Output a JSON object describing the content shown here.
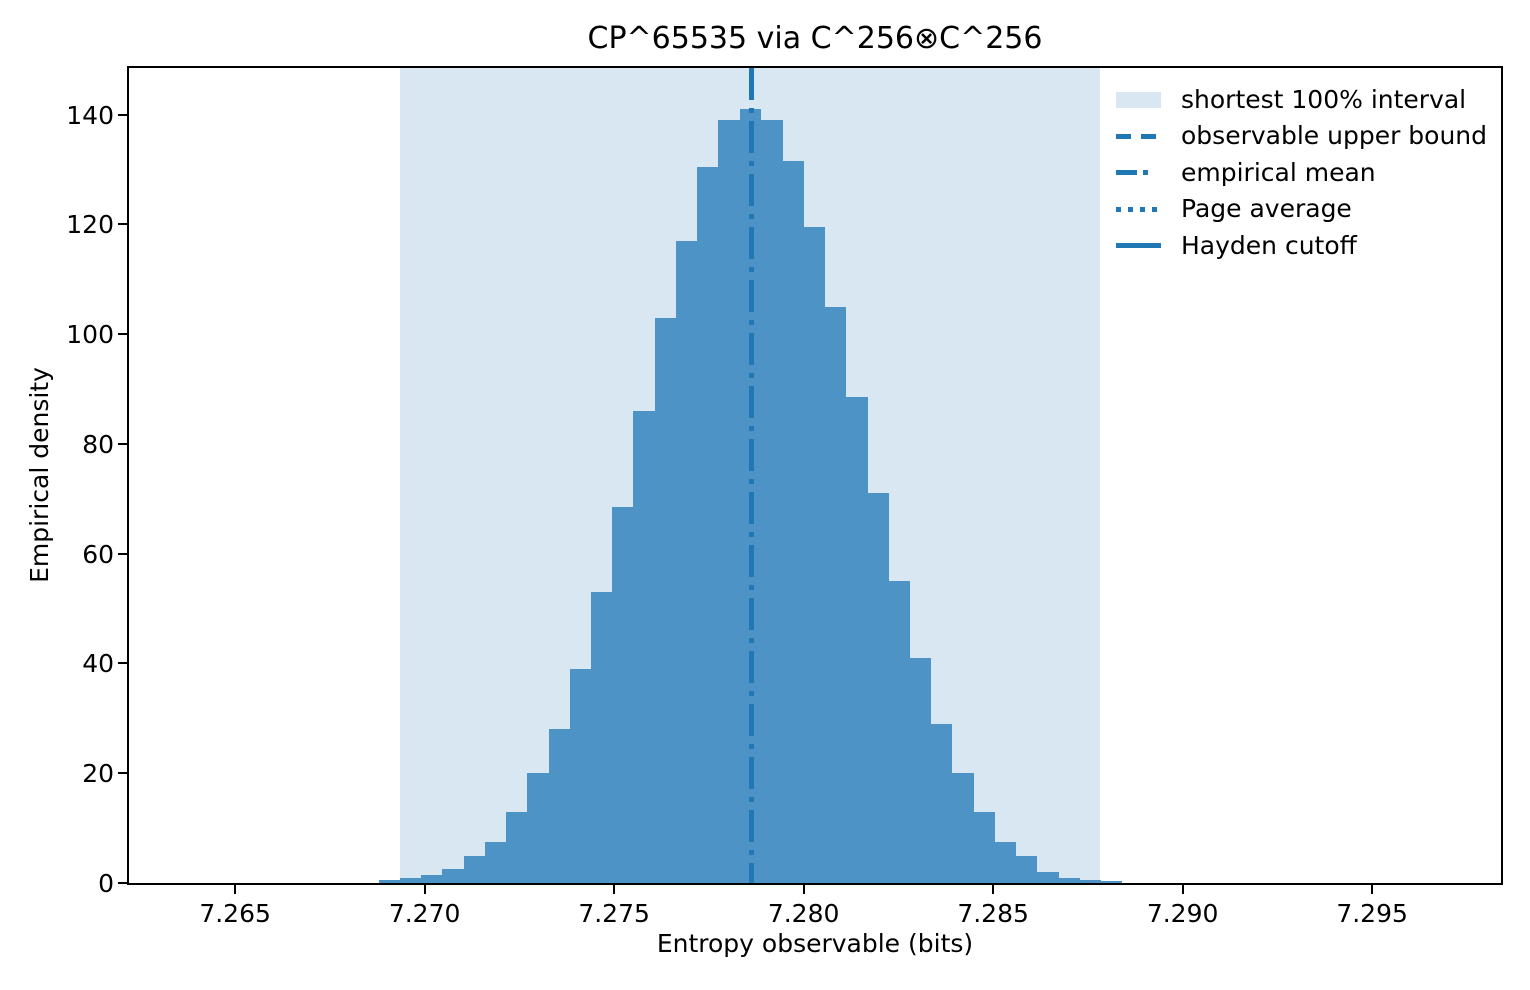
{
  "figure": {
    "title": "CP^65535 via C^256⊗C^256",
    "xlabel": "Entropy observable (bits)",
    "ylabel": "Empirical density"
  },
  "legend": {
    "items": [
      {
        "sample": "patch",
        "label": "shortest 100% interval"
      },
      {
        "sample": "dashed",
        "label": "observable upper bound"
      },
      {
        "sample": "dashdot",
        "label": "empirical mean"
      },
      {
        "sample": "dotted",
        "label": "Page average"
      },
      {
        "sample": "solid",
        "label": "Hayden cutoff"
      }
    ]
  },
  "chart_data": {
    "type": "bar",
    "subtype": "histogram",
    "title": "CP^65535 via C^256⊗C^256",
    "xlabel": "Entropy observable (bits)",
    "ylabel": "Empirical density",
    "xlim": [
      7.2622,
      7.2984
    ],
    "ylim": [
      0,
      148.5
    ],
    "grid": false,
    "legend_position": "upper right",
    "xticks": [
      {
        "value": 7.265,
        "label": "7.265"
      },
      {
        "value": 7.27,
        "label": "7.270"
      },
      {
        "value": 7.275,
        "label": "7.275"
      },
      {
        "value": 7.28,
        "label": "7.280"
      },
      {
        "value": 7.285,
        "label": "7.285"
      },
      {
        "value": 7.29,
        "label": "7.290"
      },
      {
        "value": 7.295,
        "label": "7.295"
      }
    ],
    "yticks": [
      {
        "value": 0,
        "label": "0"
      },
      {
        "value": 20,
        "label": "20"
      },
      {
        "value": 40,
        "label": "40"
      },
      {
        "value": 60,
        "label": "60"
      },
      {
        "value": 80,
        "label": "80"
      },
      {
        "value": 100,
        "label": "100"
      },
      {
        "value": 120,
        "label": "120"
      },
      {
        "value": 140,
        "label": "140"
      }
    ],
    "bin_edges": [
      7.26879,
      7.26935,
      7.26991,
      7.27047,
      7.27103,
      7.27159,
      7.27215,
      7.27271,
      7.27327,
      7.27383,
      7.27439,
      7.27495,
      7.27551,
      7.27607,
      7.27663,
      7.27719,
      7.27775,
      7.27831,
      7.27887,
      7.27943,
      7.27999,
      7.28055,
      7.28111,
      7.28167,
      7.28223,
      7.28279,
      7.28335,
      7.28391,
      7.28447,
      7.28503,
      7.28559,
      7.28615,
      7.28671,
      7.28727,
      7.28783,
      7.28839
    ],
    "counts": [
      0.5,
      1,
      1.5,
      2.5,
      5,
      7.5,
      13,
      20,
      28,
      39,
      53,
      68.5,
      86,
      103,
      117,
      130.5,
      139,
      141,
      139,
      131.5,
      119.5,
      105,
      88.5,
      71,
      55,
      41,
      29,
      20,
      13,
      7.5,
      5,
      2,
      1,
      0.5,
      0.3
    ],
    "shaded_interval": {
      "label": "shortest 100% interval",
      "from": 7.26935,
      "to": 7.28783
    },
    "vlines": [
      {
        "label": "empirical mean",
        "style": "dashdot",
        "x": 7.27862,
        "visible": true
      },
      {
        "label": "Page average",
        "style": "dotted",
        "x": 7.27862,
        "visible": true,
        "overlaps": "empirical mean"
      },
      {
        "label": "observable upper bound",
        "style": "dashed",
        "visible": false
      },
      {
        "label": "Hayden cutoff",
        "style": "solid",
        "visible": false
      }
    ],
    "colors": {
      "bar": "#4d93c6",
      "shaded_interval": "#d9e7f2",
      "line": "#1f77b4",
      "text": "#000000",
      "background": "#ffffff"
    }
  }
}
